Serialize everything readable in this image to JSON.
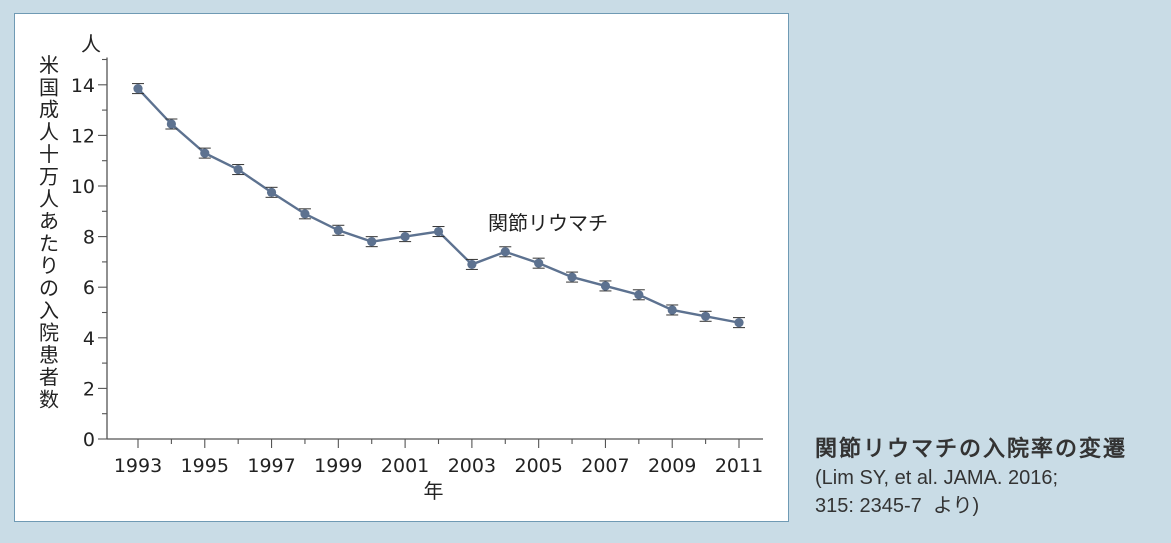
{
  "colors": {
    "background": "#c9dce6",
    "panel": "#ffffff",
    "panel_border": "#6f9ab4",
    "series": "#5d7290",
    "axis": "#555555"
  },
  "chart_data": {
    "type": "line",
    "title": "",
    "xlabel": "年",
    "ylabel": "米国成人十万人あたりの入院患者数",
    "y_unit": "人",
    "x": [
      1993,
      1994,
      1995,
      1996,
      1997,
      1998,
      1999,
      2000,
      2001,
      2002,
      2003,
      2004,
      2005,
      2006,
      2007,
      2008,
      2009,
      2010,
      2011
    ],
    "x_tick_labels": [
      "1993",
      "1995",
      "1997",
      "1999",
      "2001",
      "2003",
      "2005",
      "2007",
      "2009",
      "2011"
    ],
    "y_ticks": [
      "0",
      "2",
      "4",
      "6",
      "8",
      "10",
      "12",
      "14"
    ],
    "xlim": [
      1993,
      2011
    ],
    "ylim": [
      0,
      15
    ],
    "series": [
      {
        "name": "関節リウマチ",
        "values": [
          13.85,
          12.45,
          11.3,
          10.65,
          9.75,
          8.9,
          8.25,
          7.8,
          8.0,
          8.2,
          6.9,
          7.4,
          6.95,
          6.4,
          6.05,
          5.7,
          5.1,
          4.85,
          4.6
        ]
      }
    ],
    "error_bars": true,
    "grid": false,
    "legend": "inline label near series"
  },
  "caption": {
    "title": "関節リウマチの入院率の変遷",
    "citation": "(Lim SY, et al. JAMA. 2016;\n315: 2345-7  より)"
  }
}
